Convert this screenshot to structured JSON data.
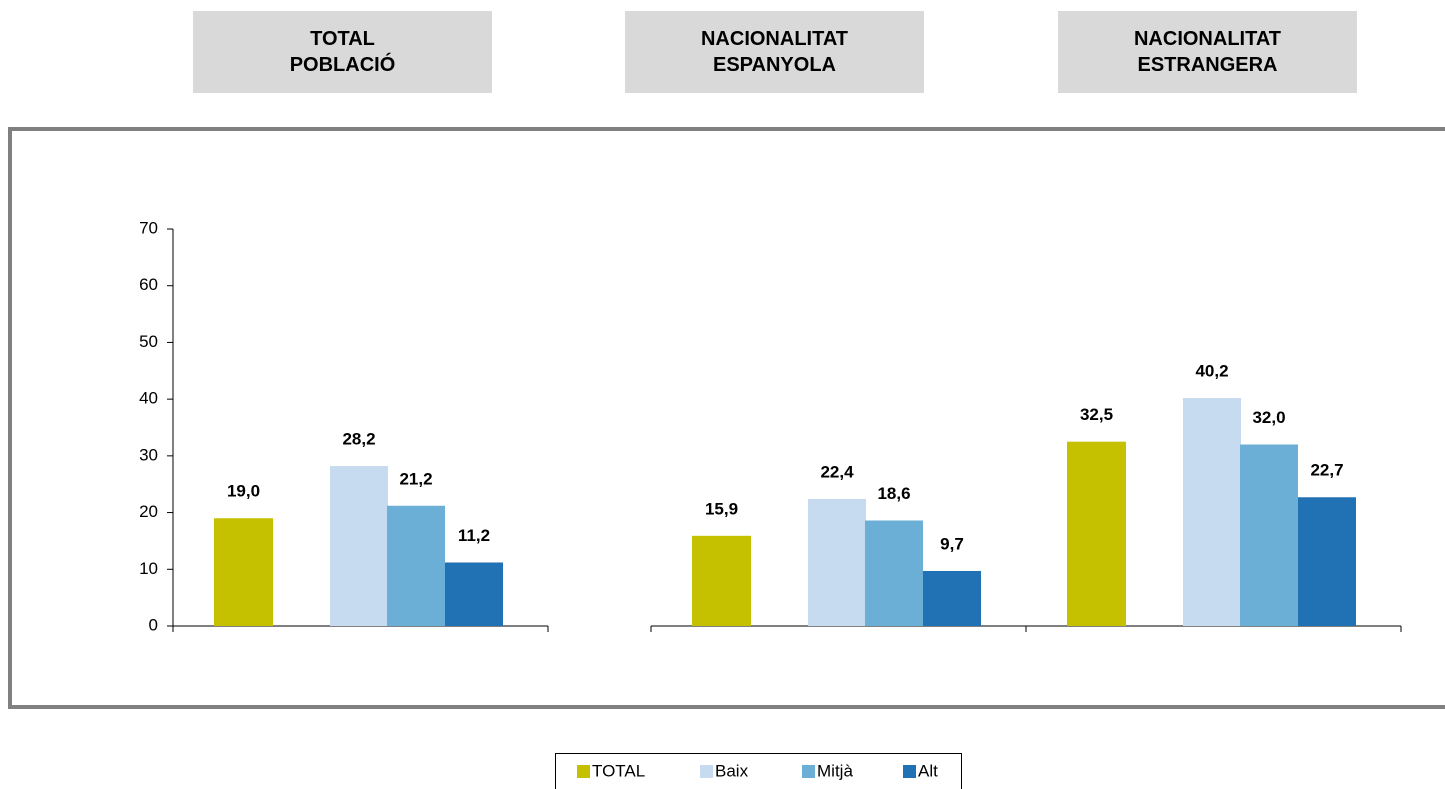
{
  "chart_data": {
    "type": "bar",
    "categories": [
      "TOTAL POBLACIÓ",
      "NACIONALITAT ESPANYOLA",
      "NACIONALITAT ESTRANGERA"
    ],
    "series": [
      {
        "name": "TOTAL",
        "color": "#c5c000",
        "values": [
          19.0,
          15.9,
          32.5
        ],
        "value_labels": [
          "19,0",
          "15,9",
          "32,5"
        ]
      },
      {
        "name": "Baix",
        "color": "#c6dbef",
        "values": [
          28.2,
          22.4,
          40.2
        ],
        "value_labels": [
          "28,2",
          "22,4",
          "40,2"
        ]
      },
      {
        "name": "Mitjà",
        "color": "#6baed6",
        "values": [
          21.2,
          18.6,
          32.0
        ],
        "value_labels": [
          "21,2",
          "18,6",
          "32,0"
        ]
      },
      {
        "name": "Alt",
        "color": "#2171b5",
        "values": [
          11.2,
          9.7,
          22.7
        ],
        "value_labels": [
          "11,2",
          "9,7",
          "22,7"
        ]
      }
    ],
    "ylim": [
      0,
      70
    ],
    "yticks": [
      0,
      10,
      20,
      30,
      40,
      50,
      60,
      70
    ],
    "legend": "bottom"
  }
}
